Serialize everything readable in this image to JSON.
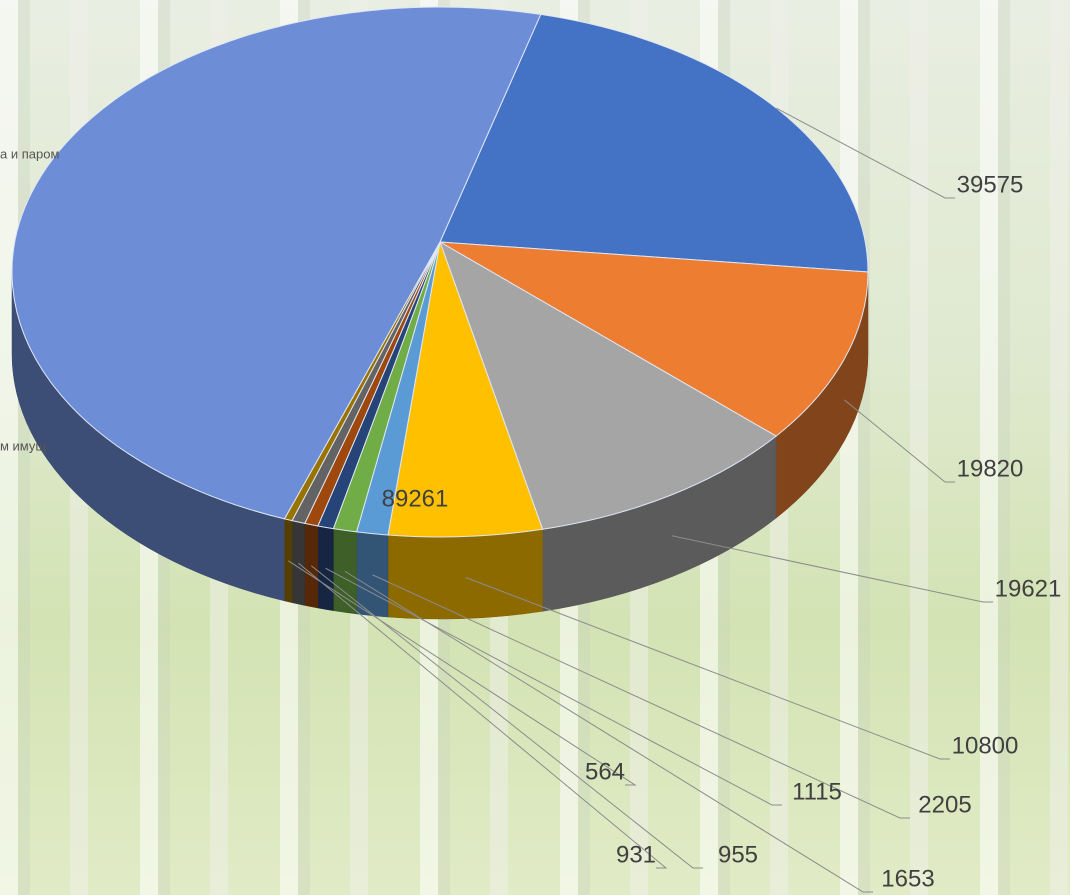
{
  "chart_data": {
    "type": "pie3d",
    "annotations": [
      "а и паром",
      "м имущ."
    ],
    "values": [
      39575,
      19820,
      19621,
      10800,
      2205,
      1653,
      1115,
      955,
      931,
      564,
      89261
    ],
    "colors": [
      "#4472c4",
      "#ed7d31",
      "#a5a5a5",
      "#ffc000",
      "#5b9bd5",
      "#70ad47",
      "#264478",
      "#9e480e",
      "#636363",
      "#997300",
      "#6d8ed6"
    ]
  }
}
